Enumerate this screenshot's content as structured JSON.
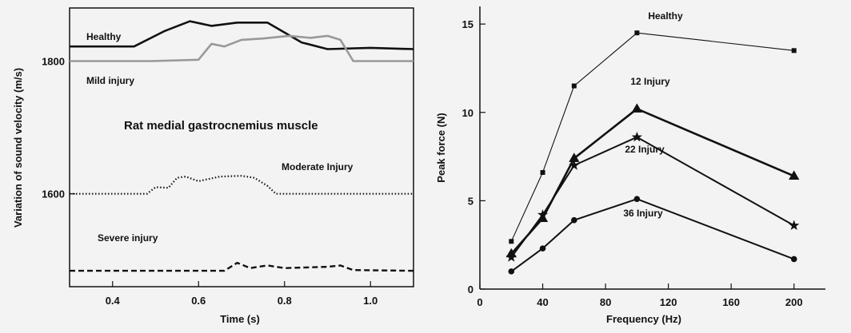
{
  "chart_data": [
    {
      "type": "line",
      "title": "Rat medial gastrocnemius muscle",
      "xlabel": "Time (s)",
      "ylabel": "Variation of sound velocity (m/s)",
      "xlim": [
        0.3,
        1.1
      ],
      "ylim": [
        1460,
        1880
      ],
      "x_ticks": [
        0.4,
        0.6,
        0.8,
        1.0
      ],
      "x_tick_labels": [
        "0.4",
        "0.6",
        "0.8",
        "1.0"
      ],
      "y_ticks": [
        1600,
        1800
      ],
      "y_tick_labels": [
        "1600",
        "1800"
      ],
      "grid": false,
      "series": [
        {
          "name": "Healthy",
          "style": "solid-thick",
          "color": "#111111",
          "x": [
            0.3,
            0.45,
            0.52,
            0.58,
            0.63,
            0.69,
            0.76,
            0.84,
            0.9,
            1.0,
            1.1
          ],
          "y": [
            1822,
            1822,
            1845,
            1860,
            1853,
            1858,
            1858,
            1828,
            1818,
            1820,
            1818
          ]
        },
        {
          "name": "Mild injury",
          "style": "solid-gray",
          "color": "#999999",
          "x": [
            0.3,
            0.49,
            0.6,
            0.63,
            0.66,
            0.7,
            0.75,
            0.81,
            0.86,
            0.9,
            0.93,
            0.96,
            1.0,
            1.1
          ],
          "y": [
            1800,
            1800,
            1802,
            1826,
            1822,
            1832,
            1834,
            1838,
            1835,
            1838,
            1832,
            1800,
            1800,
            1800
          ]
        },
        {
          "name": "Moderate Injury",
          "style": "dotted",
          "color": "#111111",
          "x": [
            0.3,
            0.48,
            0.5,
            0.53,
            0.55,
            0.57,
            0.6,
            0.65,
            0.7,
            0.73,
            0.76,
            0.78,
            1.1
          ],
          "y": [
            1600,
            1600,
            1610,
            1609,
            1624,
            1626,
            1619,
            1626,
            1627,
            1624,
            1612,
            1600,
            1600
          ]
        },
        {
          "name": "Severe injury",
          "style": "dashed",
          "color": "#111111",
          "x": [
            0.3,
            0.66,
            0.69,
            0.72,
            0.76,
            0.8,
            0.85,
            0.9,
            0.93,
            0.96,
            1.1
          ],
          "y": [
            1484,
            1484,
            1496,
            1488,
            1492,
            1488,
            1489,
            1490,
            1492,
            1485,
            1484
          ]
        }
      ],
      "annotations": [
        "Healthy",
        "Mild injury",
        "Moderate Injury",
        "Severe injury"
      ]
    },
    {
      "type": "line",
      "xlabel": "Frequency (Hz)",
      "ylabel": "Peak force (N)",
      "xlim": [
        0,
        220
      ],
      "ylim": [
        0,
        16
      ],
      "x_ticks": [
        0,
        40,
        80,
        120,
        160,
        200
      ],
      "x_tick_labels": [
        "0",
        "40",
        "80",
        "120",
        "160",
        "200"
      ],
      "y_ticks": [
        0,
        5,
        10,
        15
      ],
      "y_tick_labels": [
        "0",
        "5",
        "10",
        "15"
      ],
      "grid": false,
      "series": [
        {
          "name": "Healthy",
          "marker": "square",
          "stroke": "thin",
          "x": [
            20,
            40,
            60,
            100,
            200
          ],
          "y": [
            2.7,
            6.6,
            11.5,
            14.5,
            13.5
          ]
        },
        {
          "name": "12 Injury",
          "marker": "triangle",
          "stroke": "thick",
          "x": [
            20,
            40,
            60,
            100,
            200
          ],
          "y": [
            2.0,
            4.0,
            7.4,
            10.2,
            6.4
          ]
        },
        {
          "name": "22 Injury",
          "marker": "star",
          "stroke": "medium",
          "x": [
            20,
            40,
            60,
            100,
            200
          ],
          "y": [
            1.8,
            4.2,
            7.0,
            8.6,
            3.6
          ]
        },
        {
          "name": "36 Injury",
          "marker": "circle",
          "stroke": "medium",
          "x": [
            20,
            40,
            60,
            100,
            200
          ],
          "y": [
            1.0,
            2.3,
            3.9,
            5.1,
            1.7
          ]
        }
      ],
      "annotations": [
        "Healthy",
        "12 Injury",
        "22 Injury",
        "36 Injury"
      ]
    }
  ]
}
